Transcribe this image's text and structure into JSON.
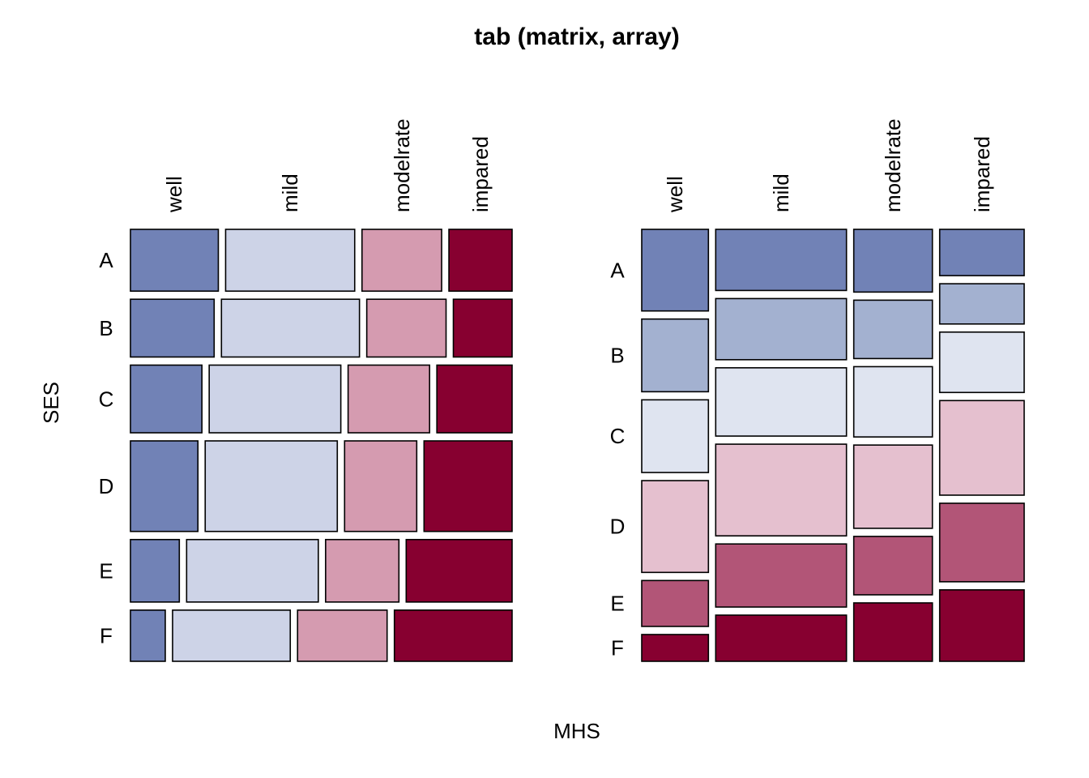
{
  "chart_data": {
    "type": "mosaic",
    "title": "tab (matrix, array)",
    "xlabel": "MHS",
    "ylabel": "SES",
    "row_categories": [
      "A",
      "B",
      "C",
      "D",
      "E",
      "F"
    ],
    "col_categories": [
      "well",
      "mild",
      "modelrate",
      "impared"
    ],
    "counts": [
      [
        64,
        94,
        58,
        46
      ],
      [
        57,
        94,
        54,
        40
      ],
      [
        57,
        105,
        65,
        60
      ],
      [
        72,
        141,
        77,
        94
      ],
      [
        36,
        97,
        54,
        78
      ],
      [
        21,
        71,
        54,
        71
      ]
    ],
    "panels": [
      {
        "split": "rows-then-columns",
        "color_by": "column",
        "palette": [
          "#7182b6",
          "#cdd3e7",
          "#d59bb0",
          "#870030"
        ]
      },
      {
        "split": "columns-then-rows",
        "color_by": "row",
        "palette": [
          "#7182b6",
          "#a3b1d0",
          "#dfe4f0",
          "#e5c0cf",
          "#b25577",
          "#870030"
        ]
      }
    ]
  }
}
